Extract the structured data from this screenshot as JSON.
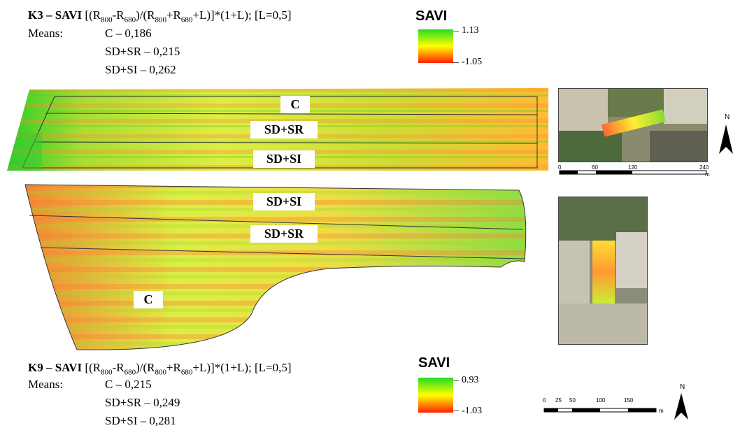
{
  "top": {
    "formula": {
      "code": "K3 – SAVI",
      "expr_a": " [(R",
      "sub1": "800",
      "expr_b": "-R",
      "sub2": "680",
      "expr_c": ")/(R",
      "sub3": "800",
      "expr_d": "+R",
      "sub4": "680",
      "expr_e": "+L)]*(1+L);  [L=0,5]"
    },
    "means_label": "Means:",
    "means": [
      "C – 0,186",
      "SD+SR – 0,215",
      "SD+SI – 0,262"
    ],
    "legend": {
      "title": "SAVI",
      "max": "1.13",
      "min": "-1.05"
    },
    "plot_labels": [
      "C",
      "SD+SR",
      "SD+SI"
    ],
    "scalebar": {
      "ticks": [
        "0",
        "60",
        "120",
        "240"
      ],
      "unit": "m"
    },
    "north": "N"
  },
  "bottom": {
    "formula": {
      "code": "K9 – SAVI",
      "expr_a": " [(R",
      "sub1": "800",
      "expr_b": "-R",
      "sub2": "680",
      "expr_c": ")/(R",
      "sub3": "800",
      "expr_d": "+R",
      "sub4": "680",
      "expr_e": "+L)]*(1+L);  [L=0,5]"
    },
    "means_label": "Means:",
    "means": [
      "C – 0,215",
      "SD+SR – 0,249",
      "SD+SI – 0,281"
    ],
    "legend": {
      "title": "SAVI",
      "max": "0.93",
      "min": "-1.03"
    },
    "plot_labels": [
      "SD+SI",
      "SD+SR",
      "C"
    ],
    "scalebar": {
      "ticks": [
        "0",
        "25",
        "50",
        "100",
        "150"
      ],
      "unit": "m"
    },
    "north": "N"
  },
  "colors": {
    "green": "#22dd22",
    "yellow": "#ffff00",
    "red": "#ff2200",
    "field_edge": "#333333"
  }
}
